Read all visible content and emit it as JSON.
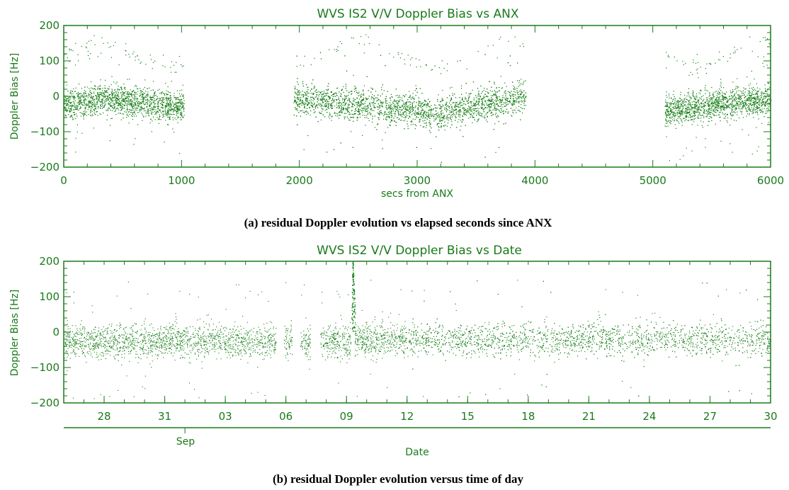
{
  "colors": {
    "plot": "#1a7a1a",
    "dots": "#0f7a0f",
    "background": "#ffffff"
  },
  "chart_data": [
    {
      "type": "scatter",
      "title": "WVS IS2 V/V Doppler Bias vs ANX",
      "xlabel": "secs from ANX",
      "ylabel": "Doppler Bias [Hz]",
      "xlim": [
        0,
        6000
      ],
      "ylim": [
        -200,
        200
      ],
      "x_ticks": [
        "0",
        "1000",
        "2000",
        "3000",
        "4000",
        "5000",
        "6000"
      ],
      "y_ticks": [
        "−200",
        "−100",
        "0",
        "100",
        "200"
      ],
      "grid": false,
      "series": [
        {
          "x_range": [
            0,
            1020
          ],
          "y_start": -25,
          "y_end": -30,
          "y_peak_x": 350,
          "y_peak": -5,
          "spread": 55
        },
        {
          "x_range": [
            1950,
            3920
          ],
          "y_start": -5,
          "y_end": 0,
          "y_peak_x": 3200,
          "y_peak": -45,
          "spread": 60
        },
        {
          "x_range": [
            5100,
            6000
          ],
          "y_start": -40,
          "y_end": -10,
          "y_peak_x": 5700,
          "y_peak": -15,
          "spread": 55
        }
      ],
      "caption": "(a) residual Doppler evolution vs elapsed seconds since ANX"
    },
    {
      "type": "scatter",
      "title": "WVS IS2 V/V Doppler Bias vs Date",
      "xlabel": "Date",
      "ylabel": "Doppler Bias [Hz]",
      "xlim": [
        "Aug 26",
        "Sep 30"
      ],
      "ylim": [
        -200,
        200
      ],
      "x_ticks": [
        "28",
        "31",
        "03",
        "06",
        "09",
        "12",
        "15",
        "18",
        "21",
        "24",
        "27",
        "30"
      ],
      "x_month_label": "Sep",
      "y_ticks": [
        "−200",
        "−100",
        "0",
        "100",
        "200"
      ],
      "grid": false,
      "series": [
        {
          "x_range": [
            "Aug 26",
            "Sep 5.5"
          ],
          "y_mean": -25,
          "spread": 55
        },
        {
          "x_range": [
            "Sep 5.9",
            "Sep 6.3"
          ],
          "y_mean": -25,
          "spread": 55
        },
        {
          "x_range": [
            "Sep 6.7",
            "Sep 7.2"
          ],
          "y_mean": -30,
          "spread": 55
        },
        {
          "x_range": [
            "Sep 7.7",
            "Sep 9.2"
          ],
          "y_mean": -25,
          "spread": 55
        },
        {
          "x_range": [
            "Sep 9.4",
            "Sep 12"
          ],
          "y_mean": -20,
          "spread": 55
        },
        {
          "x_range": [
            "Sep 12",
            "Sep 30"
          ],
          "y_mean": -20,
          "spread": 55
        }
      ],
      "spike": {
        "x": "Sep 9.3",
        "y_range": [
          0,
          200
        ]
      },
      "caption": "(b) residual Doppler evolution versus time of day"
    }
  ]
}
